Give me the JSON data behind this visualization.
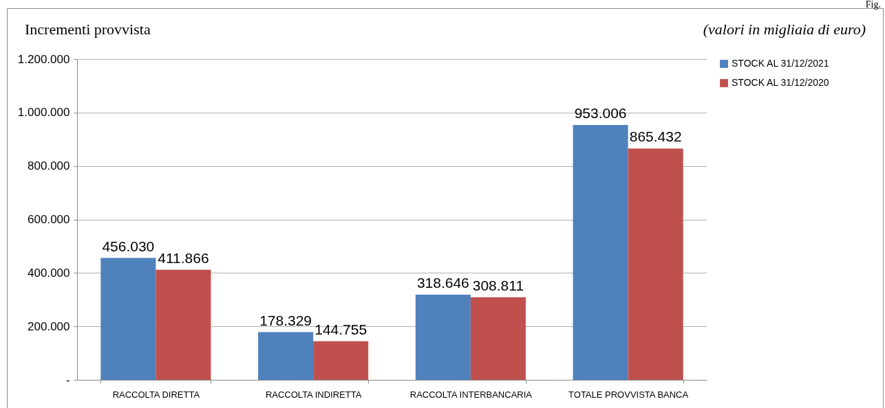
{
  "chart_data": {
    "type": "bar",
    "title": "Incrementi provvista",
    "subtitle": "(valori in migliaia di euro)",
    "annotations": [
      "Fig."
    ],
    "categories": [
      "RACCOLTA DIRETTA",
      "RACCOLTA INDIRETTA",
      "RACCOLTA INTERBANCARIA",
      "TOTALE PROVVISTA BANCA"
    ],
    "series": [
      {
        "name": "STOCK AL 31/12/2021",
        "color": "#4f81bd",
        "values": [
          456030,
          178329,
          318646,
          953006
        ],
        "value_labels": [
          "456.030",
          "178.329",
          "318.646",
          "953.006"
        ]
      },
      {
        "name": "STOCK AL 31/12/2020",
        "color": "#c0504d",
        "values": [
          411866,
          144755,
          308811,
          865432
        ],
        "value_labels": [
          "411.866",
          "144.755",
          "308.811",
          "865.432"
        ]
      }
    ],
    "ylim": [
      0,
      1200000
    ],
    "yticks": [
      {
        "value": 0,
        "label": "-"
      },
      {
        "value": 200000,
        "label": "200.000"
      },
      {
        "value": 400000,
        "label": "400.000"
      },
      {
        "value": 600000,
        "label": "600.000"
      },
      {
        "value": 800000,
        "label": "800.000"
      },
      {
        "value": 1000000,
        "label": "1.000.000"
      },
      {
        "value": 1200000,
        "label": "1.200.000"
      }
    ],
    "grid": "y",
    "legend": "right"
  }
}
